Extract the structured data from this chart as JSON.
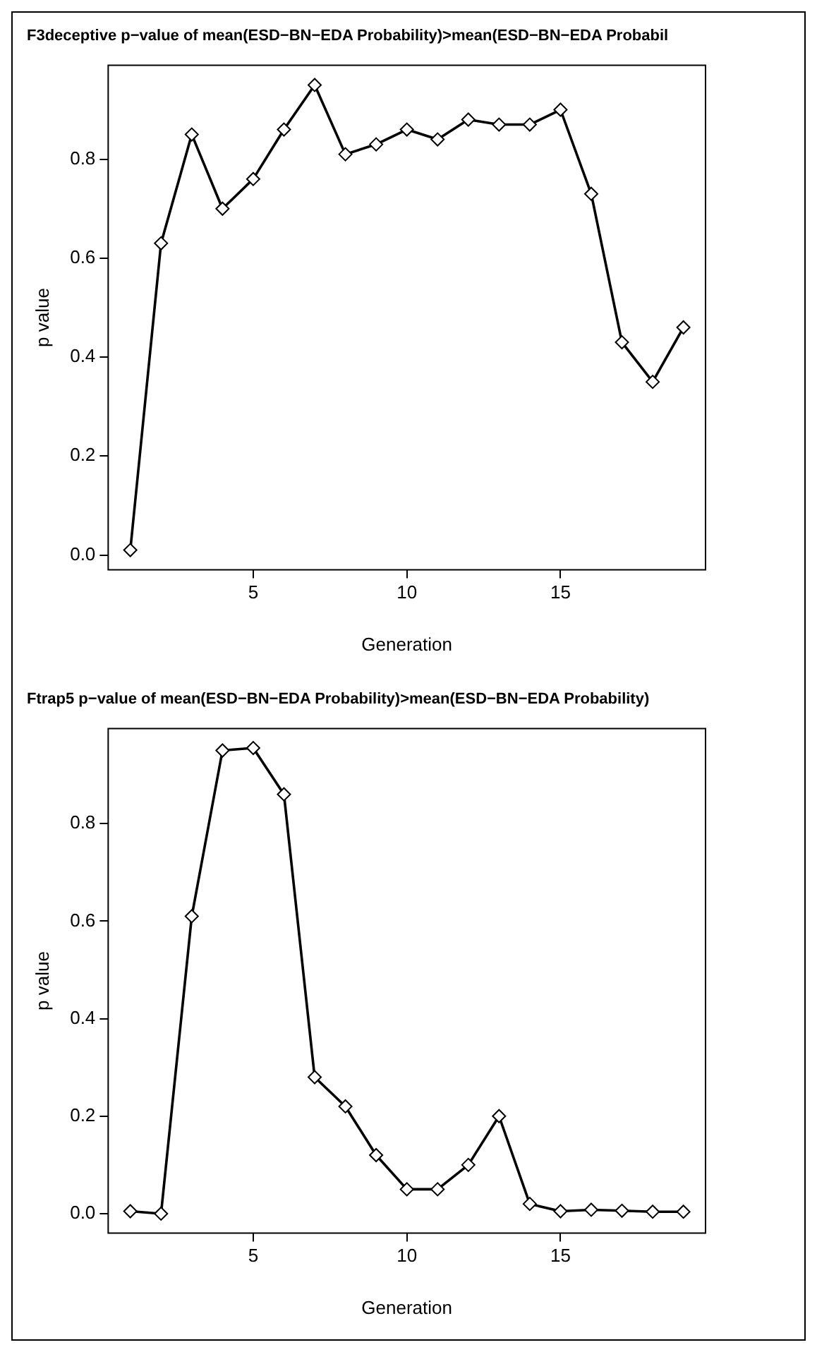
{
  "chart_data": [
    {
      "type": "line",
      "title": "F3deceptive p−value of mean(ESD−BN−EDA Probability)>mean(ESD−BN−EDA Probabil",
      "xlabel": "Generation",
      "ylabel": "p value",
      "x": [
        1,
        2,
        3,
        4,
        5,
        6,
        7,
        8,
        9,
        10,
        11,
        12,
        13,
        14,
        15,
        16,
        17,
        18,
        19
      ],
      "series": [
        {
          "color": "#000000",
          "values": [
            0.01,
            0.63,
            0.85,
            0.7,
            0.76,
            0.86,
            0.95,
            0.81,
            0.83,
            0.86,
            0.84,
            0.88,
            0.87,
            0.87,
            0.9,
            0.73,
            0.43,
            0.35,
            0.46
          ]
        }
      ],
      "xlim": [
        0.28,
        19.72
      ],
      "xticks": [
        5,
        10,
        15
      ],
      "ylim": [
        -0.03,
        0.99
      ],
      "yticks": [
        {
          "value": 0,
          "label": "0.0"
        },
        0.2,
        0.4,
        0.6,
        0.8
      ],
      "grid": false,
      "legend": false,
      "marker": "diamond",
      "line_style": "solid"
    },
    {
      "type": "line",
      "title": "Ftrap5 p−value of mean(ESD−BN−EDA Probability)>mean(ESD−BN−EDA Probability)",
      "xlabel": "Generation",
      "ylabel": "p value",
      "x": [
        1,
        2,
        3,
        4,
        5,
        6,
        7,
        8,
        9,
        10,
        11,
        12,
        13,
        14,
        15,
        16,
        17,
        18,
        19
      ],
      "series": [
        {
          "color": "#000000",
          "values": [
            0.005,
            0.0,
            0.61,
            0.95,
            0.955,
            0.86,
            0.28,
            0.22,
            0.12,
            0.05,
            0.05,
            0.1,
            0.2,
            0.02,
            0.005,
            0.008,
            0.006,
            0.004,
            0.004
          ]
        }
      ],
      "xlim": [
        0.28,
        19.72
      ],
      "xticks": [
        5,
        10,
        15
      ],
      "ylim": [
        -0.04,
        0.995
      ],
      "yticks": [
        {
          "value": 0,
          "label": "0.0"
        },
        0.2,
        0.4,
        0.6,
        0.8
      ],
      "grid": false,
      "legend": false,
      "marker": "diamond",
      "line_style": "solid"
    }
  ]
}
